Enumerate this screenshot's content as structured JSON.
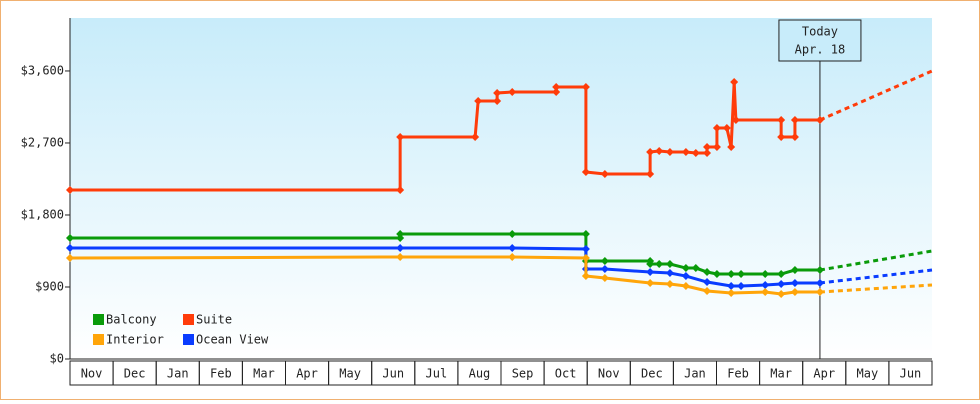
{
  "chart_data": {
    "type": "line",
    "categories": [
      "Nov",
      "Dec",
      "Jan",
      "Feb",
      "Mar",
      "Apr",
      "May",
      "Jun",
      "Jul",
      "Aug",
      "Sep",
      "Oct",
      "Nov",
      "Dec",
      "Jan",
      "Feb",
      "Mar",
      "Apr",
      "May",
      "Jun"
    ],
    "xlim": [
      0,
      20
    ],
    "ylim": [
      0,
      4262
    ],
    "yticks": [
      {
        "value": 0,
        "label": "$0"
      },
      {
        "value": 900,
        "label": "$900"
      },
      {
        "value": 1800,
        "label": "$1,800"
      },
      {
        "value": 2700,
        "label": "$2,700"
      },
      {
        "value": 3600,
        "label": "$3,600"
      }
    ],
    "today": {
      "x": 17.4,
      "label": [
        "Today",
        "Apr. 18"
      ]
    },
    "forecast_x": [
      17.4,
      20
    ],
    "series": [
      {
        "name": "Suite",
        "color": "#ff3c0a",
        "x": [
          0,
          7.66,
          7.66,
          9.4,
          9.47,
          9.91,
          9.91,
          10.26,
          11.28,
          11.28,
          11.97,
          11.97,
          12.41,
          13.46,
          13.46,
          13.67,
          13.92,
          14.29,
          14.52,
          14.78,
          14.78,
          15.01,
          15.01,
          15.24,
          15.34,
          15.41,
          15.45,
          16.5,
          16.5,
          16.82,
          16.82,
          17.4
        ],
        "values": [
          2112,
          2112,
          2775,
          2775,
          3225,
          3225,
          3325,
          3337,
          3337,
          3400,
          3400,
          2337,
          2312,
          2312,
          2587,
          2600,
          2587,
          2587,
          2575,
          2575,
          2650,
          2650,
          2887,
          2887,
          2650,
          3462,
          2987,
          2987,
          2775,
          2775,
          2987,
          2987
        ],
        "forecast_values": [
          2987,
          3600
        ]
      },
      {
        "name": "Balcony",
        "color": "#0a9b0a",
        "x": [
          0,
          7.66,
          7.66,
          10.26,
          11.97,
          11.97,
          12.41,
          13.46,
          13.46,
          13.67,
          13.92,
          14.29,
          14.52,
          14.78,
          15.01,
          15.34,
          15.57,
          16.13,
          16.5,
          16.82,
          17.4
        ],
        "values": [
          1512,
          1512,
          1562,
          1562,
          1562,
          1225,
          1225,
          1225,
          1187,
          1187,
          1187,
          1137,
          1137,
          1087,
          1062,
          1062,
          1062,
          1062,
          1062,
          1112,
          1112
        ],
        "forecast_values": [
          1112,
          1350
        ]
      },
      {
        "name": "Ocean View",
        "color": "#0a3cff",
        "x": [
          0,
          7.66,
          10.26,
          11.97,
          11.97,
          12.41,
          13.46,
          13.92,
          14.29,
          14.78,
          15.34,
          15.57,
          16.13,
          16.5,
          16.82,
          17.4
        ],
        "values": [
          1387,
          1387,
          1387,
          1375,
          1125,
          1125,
          1087,
          1075,
          1037,
          962,
          912,
          912,
          925,
          937,
          950,
          950
        ],
        "forecast_values": [
          950,
          1112
        ]
      },
      {
        "name": "Interior",
        "color": "#ffa50a",
        "x": [
          0,
          7.66,
          10.26,
          11.97,
          11.97,
          12.41,
          13.46,
          13.92,
          14.29,
          14.78,
          15.34,
          16.13,
          16.5,
          16.82,
          17.4
        ],
        "values": [
          1262,
          1275,
          1275,
          1262,
          1037,
          1012,
          950,
          937,
          912,
          850,
          825,
          837,
          812,
          837,
          837
        ],
        "forecast_values": [
          837,
          925
        ]
      }
    ],
    "legend_order": [
      1,
      0,
      3,
      2
    ]
  }
}
